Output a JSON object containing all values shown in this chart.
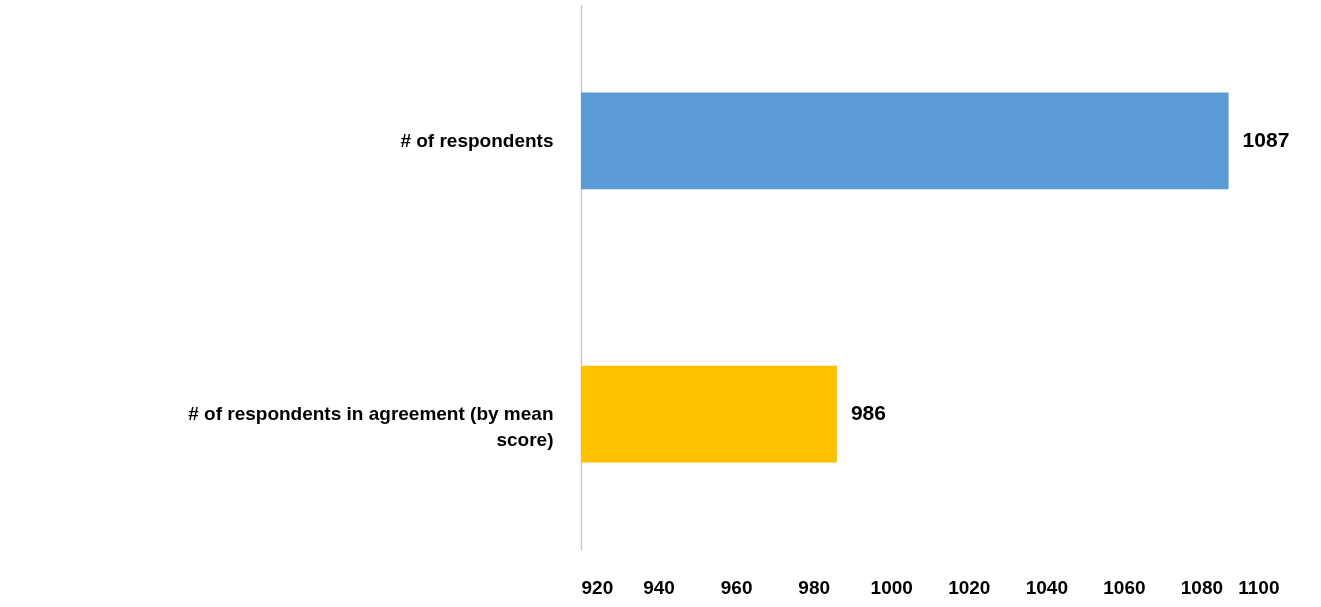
{
  "chart_data": {
    "type": "bar",
    "orientation": "horizontal",
    "categories": [
      "# of respondents",
      "# of respondents in agreement (by mean score)"
    ],
    "values": [
      1087,
      986
    ],
    "colors": [
      "#5b9bd5",
      "#ffc000"
    ],
    "xlim": [
      920,
      1100
    ],
    "xticks": [
      920,
      940,
      960,
      980,
      1000,
      1020,
      1040,
      1060,
      1080,
      1100
    ],
    "data_labels": true,
    "grid": false
  }
}
